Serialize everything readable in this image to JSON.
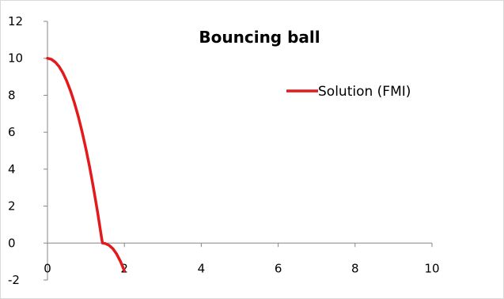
{
  "chart_data": {
    "type": "line",
    "title": "Bouncing ball",
    "xlabel": "",
    "ylabel": "",
    "xlim": [
      0,
      10
    ],
    "ylim": [
      -2,
      12
    ],
    "x_ticks": [
      0,
      2,
      4,
      6,
      8,
      10
    ],
    "y_ticks": [
      -2,
      0,
      2,
      4,
      6,
      8,
      10,
      12
    ],
    "grid": false,
    "legend_position": "right",
    "series": [
      {
        "name": "Solution (FMI)",
        "color": "#e31a1c",
        "x": [
          0,
          0.1,
          0.2,
          0.3,
          0.4,
          0.5,
          0.6,
          0.7,
          0.8,
          0.9,
          1.0,
          1.1,
          1.2,
          1.3,
          1.4,
          1.43,
          1.5,
          1.6,
          1.7,
          1.8,
          1.9,
          2.0
        ],
        "y": [
          10,
          9.95,
          9.8,
          9.56,
          9.22,
          8.77,
          8.23,
          7.6,
          6.86,
          6.03,
          5.1,
          4.07,
          2.94,
          1.71,
          0.39,
          0.0,
          -0.02,
          -0.12,
          -0.3,
          -0.6,
          -1.0,
          -1.5
        ]
      }
    ]
  }
}
